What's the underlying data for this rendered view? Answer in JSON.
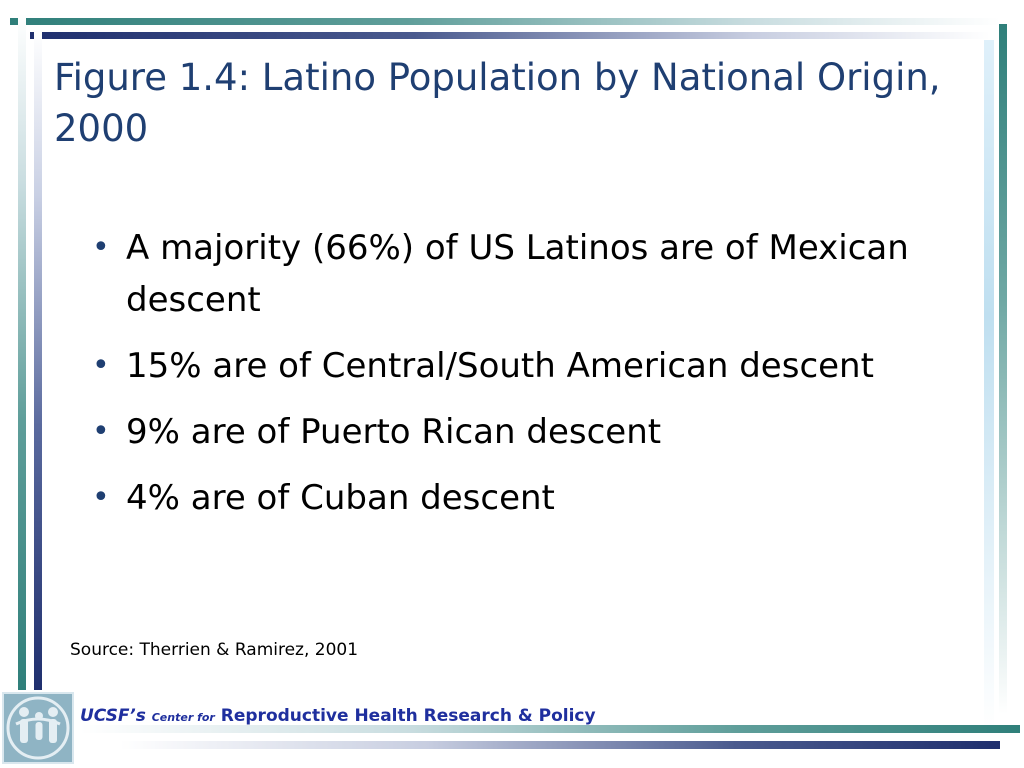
{
  "slide": {
    "title": "Figure 1.4: Latino Population by National Origin, 2000",
    "bullets": [
      "A majority (66%) of US Latinos are of Mexican descent",
      "15% are of Central/South American descent",
      "9% are of Puerto Rican descent",
      "4% are of Cuban descent"
    ],
    "bullet_symbol": "•",
    "source": "Source: Therrien & Ramirez, 2001"
  },
  "footer": {
    "org_possessive": "UCSF’s",
    "center_for": "Center for",
    "program": "Reproductive Health Research & Policy",
    "logo_icon": "family-figures-logo"
  },
  "colors": {
    "title": "#1f3f72",
    "accent_teal": "#2f7f7a",
    "accent_navy": "#1f2f6e",
    "footer_text": "#1f2f9e"
  }
}
